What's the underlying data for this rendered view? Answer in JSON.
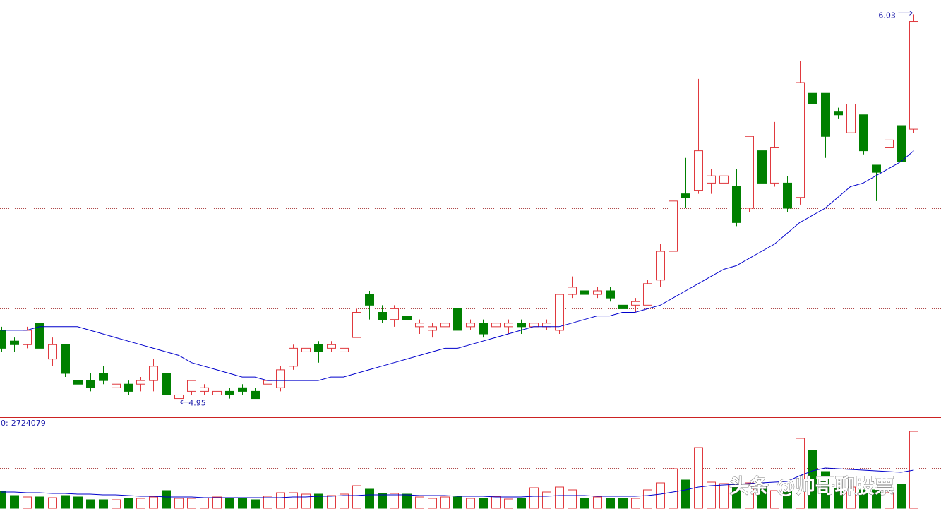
{
  "chart_data": {
    "type": "candlestick",
    "up_color": "#e0393e",
    "down_color": "#008000",
    "ma_color": "#0000cc",
    "grid_color": "#b04848",
    "ylim": [
      4.91,
      6.07
    ],
    "grid_levels": [
      5.76,
      5.49,
      5.21
    ],
    "open": [
      5.15,
      5.12,
      5.11,
      5.17,
      5.07,
      5.11,
      5.01,
      5.01,
      5.03,
      4.99,
      5.0,
      5.0,
      5.01,
      5.03,
      4.96,
      4.98,
      4.98,
      4.97,
      4.98,
      4.99,
      4.98,
      5.0,
      4.99,
      5.05,
      5.09,
      5.11,
      5.1,
      5.09,
      5.13,
      5.25,
      5.2,
      5.18,
      5.19,
      5.16,
      5.15,
      5.16,
      5.21,
      5.16,
      5.17,
      5.16,
      5.16,
      5.17,
      5.16,
      5.16,
      5.15,
      5.25,
      5.26,
      5.25,
      5.26,
      5.22,
      5.22,
      5.22,
      5.29,
      5.37,
      5.53,
      5.54,
      5.56,
      5.56,
      5.55,
      5.49,
      5.65,
      5.56,
      5.56,
      5.52,
      5.81,
      5.81,
      5.76,
      5.7,
      5.75,
      5.61,
      5.66,
      5.72,
      5.71
    ],
    "close": [
      5.1,
      5.11,
      5.15,
      5.1,
      5.11,
      5.03,
      5.0,
      4.99,
      5.01,
      5.0,
      4.98,
      5.01,
      5.05,
      4.97,
      4.97,
      5.01,
      4.99,
      4.98,
      4.97,
      4.98,
      4.96,
      5.01,
      5.04,
      5.1,
      5.1,
      5.09,
      5.11,
      5.1,
      5.2,
      5.22,
      5.18,
      5.21,
      5.18,
      5.17,
      5.16,
      5.17,
      5.15,
      5.17,
      5.14,
      5.17,
      5.17,
      5.16,
      5.17,
      5.17,
      5.25,
      5.27,
      5.25,
      5.26,
      5.24,
      5.21,
      5.23,
      5.28,
      5.37,
      5.51,
      5.52,
      5.65,
      5.58,
      5.58,
      5.45,
      5.69,
      5.56,
      5.66,
      5.49,
      5.84,
      5.78,
      5.69,
      5.75,
      5.78,
      5.65,
      5.59,
      5.68,
      5.62,
      6.01
    ],
    "high": [
      5.16,
      5.13,
      5.16,
      5.18,
      5.13,
      5.11,
      5.05,
      5.03,
      5.05,
      5.01,
      5.01,
      5.02,
      5.07,
      5.03,
      4.98,
      5.01,
      5.0,
      4.99,
      4.99,
      5.0,
      4.99,
      5.02,
      5.05,
      5.11,
      5.11,
      5.12,
      5.12,
      5.12,
      5.21,
      5.26,
      5.22,
      5.22,
      5.19,
      5.18,
      5.17,
      5.19,
      5.21,
      5.18,
      5.18,
      5.18,
      5.18,
      5.18,
      5.18,
      5.18,
      5.25,
      5.3,
      5.27,
      5.27,
      5.27,
      5.23,
      5.24,
      5.29,
      5.39,
      5.52,
      5.63,
      5.85,
      5.6,
      5.68,
      5.6,
      5.69,
      5.69,
      5.73,
      5.58,
      5.9,
      6.0,
      5.81,
      5.77,
      5.8,
      5.75,
      5.61,
      5.74,
      5.72,
      6.03
    ],
    "low": [
      5.09,
      5.09,
      5.1,
      5.09,
      5.05,
      5.02,
      4.98,
      4.98,
      5.0,
      4.98,
      4.97,
      4.98,
      4.98,
      4.97,
      4.95,
      4.97,
      4.97,
      4.96,
      4.96,
      4.97,
      4.96,
      4.99,
      4.98,
      5.04,
      5.08,
      5.06,
      5.09,
      5.06,
      5.13,
      5.18,
      5.17,
      5.16,
      5.16,
      5.14,
      5.13,
      5.15,
      5.15,
      5.15,
      5.13,
      5.15,
      5.14,
      5.14,
      5.15,
      5.15,
      5.14,
      5.24,
      5.24,
      5.24,
      5.23,
      5.2,
      5.2,
      5.22,
      5.27,
      5.35,
      5.49,
      5.53,
      5.53,
      5.55,
      5.44,
      5.48,
      5.52,
      5.55,
      5.48,
      5.5,
      5.75,
      5.63,
      5.74,
      5.67,
      5.64,
      5.51,
      5.65,
      5.6,
      5.7
    ],
    "ma": [
      5.15,
      5.15,
      5.15,
      5.16,
      5.16,
      5.16,
      5.16,
      5.15,
      5.14,
      5.13,
      5.12,
      5.11,
      5.1,
      5.09,
      5.08,
      5.06,
      5.05,
      5.04,
      5.03,
      5.02,
      5.02,
      5.01,
      5.01,
      5.01,
      5.01,
      5.01,
      5.02,
      5.02,
      5.03,
      5.04,
      5.05,
      5.06,
      5.07,
      5.08,
      5.09,
      5.1,
      5.1,
      5.11,
      5.12,
      5.13,
      5.14,
      5.15,
      5.16,
      5.16,
      5.16,
      5.17,
      5.18,
      5.19,
      5.19,
      5.2,
      5.2,
      5.21,
      5.22,
      5.24,
      5.26,
      5.28,
      5.3,
      5.32,
      5.33,
      5.35,
      5.37,
      5.39,
      5.42,
      5.45,
      5.47,
      5.49,
      5.52,
      5.55,
      5.56,
      5.58,
      5.6,
      5.62,
      5.65
    ],
    "volume_name": "0:",
    "volume_ylim": [
      0,
      3200000
    ],
    "volume_grid_levels": [
      1425000,
      2150000
    ],
    "volume": [
      600000,
      450000,
      400000,
      400000,
      375000,
      450000,
      400000,
      300000,
      300000,
      300000,
      350000,
      350000,
      400000,
      625000,
      350000,
      350000,
      375000,
      400000,
      350000,
      350000,
      300000,
      425000,
      550000,
      550000,
      500000,
      500000,
      450000,
      500000,
      800000,
      675000,
      525000,
      525000,
      500000,
      400000,
      350000,
      400000,
      400000,
      350000,
      350000,
      425000,
      325000,
      350000,
      725000,
      575000,
      750000,
      650000,
      350000,
      400000,
      350000,
      350000,
      350000,
      650000,
      900000,
      1400000,
      1000000,
      2150000,
      925000,
      875000,
      750000,
      900000,
      750000,
      625000,
      625000,
      2475000,
      2050000,
      1300000,
      700000,
      750000,
      650000,
      650000,
      550000,
      850000,
      2724079
    ],
    "volume_ma": [
      575000,
      575000,
      550000,
      550000,
      525000,
      525000,
      500000,
      500000,
      475000,
      475000,
      450000,
      425000,
      425000,
      400000,
      400000,
      400000,
      375000,
      375000,
      375000,
      375000,
      375000,
      375000,
      375000,
      400000,
      400000,
      425000,
      425000,
      450000,
      450000,
      475000,
      475000,
      475000,
      475000,
      450000,
      450000,
      450000,
      425000,
      425000,
      425000,
      400000,
      400000,
      400000,
      425000,
      425000,
      450000,
      450000,
      450000,
      425000,
      425000,
      425000,
      425000,
      450000,
      500000,
      575000,
      650000,
      750000,
      800000,
      825000,
      850000,
      875000,
      900000,
      925000,
      950000,
      1150000,
      1325000,
      1425000,
      1400000,
      1375000,
      1350000,
      1325000,
      1300000,
      1275000,
      1350000
    ],
    "watermark": "头条 @帅哥聊股票"
  }
}
